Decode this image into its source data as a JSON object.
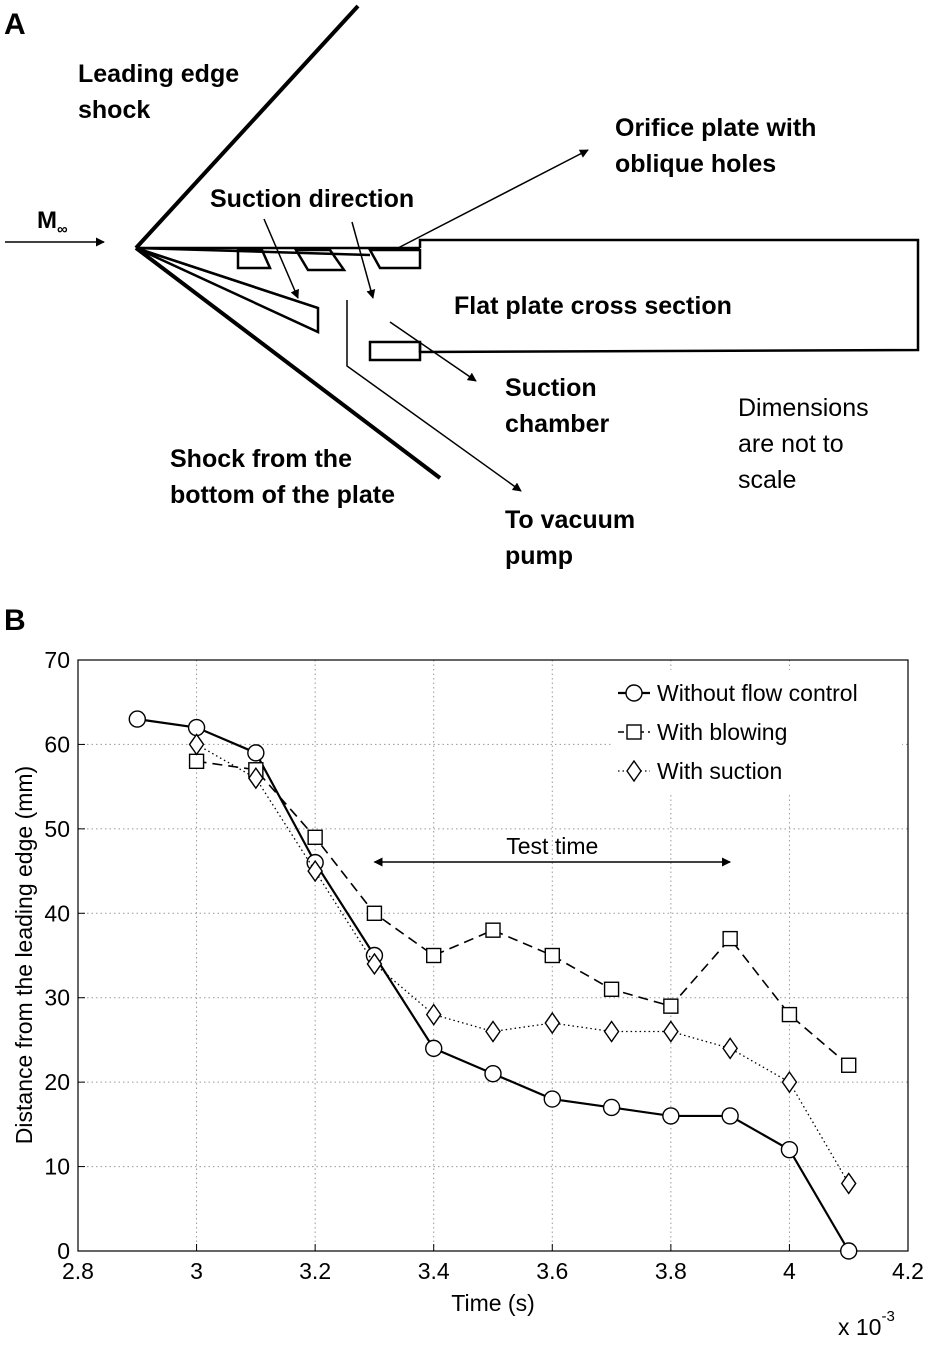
{
  "panel_a": {
    "panel_label": "A",
    "freestream": {
      "main": "M",
      "sub": "∞"
    },
    "labels": {
      "leading_edge_shock": [
        "Leading edge",
        "shock"
      ],
      "orifice_plate": [
        "Orifice plate with",
        "oblique holes"
      ],
      "suction_direction": "Suction direction",
      "flat_plate": "Flat plate cross section",
      "suction_chamber": [
        "Suction",
        "chamber"
      ],
      "dimensions_note": [
        "Dimensions",
        "are not to",
        "scale"
      ],
      "bottom_shock": [
        "Shock from the",
        "bottom of the plate"
      ],
      "vacuum_pump": [
        "To vacuum",
        "pump"
      ]
    }
  },
  "panel_b": {
    "panel_label": "B",
    "annotation": "Test time",
    "exponent_label": {
      "base": "x 10",
      "power": "-3"
    }
  },
  "chart_data": {
    "type": "line",
    "xlabel": "Time (s)",
    "ylabel": "Distance from the leading edge (mm)",
    "xlim": [
      2.8,
      4.2
    ],
    "ylim": [
      0,
      70
    ],
    "xticks": [
      "2.8",
      "3",
      "3.2",
      "3.4",
      "3.6",
      "3.8",
      "4",
      "4.2"
    ],
    "yticks": [
      "0",
      "10",
      "20",
      "30",
      "40",
      "50",
      "60",
      "70"
    ],
    "grid": true,
    "legend_position": "top-right",
    "series": [
      {
        "name": "Without flow control",
        "marker": "circle",
        "line_style": "solid",
        "x": [
          2.9,
          3.0,
          3.1,
          3.2,
          3.3,
          3.4,
          3.5,
          3.6,
          3.7,
          3.8,
          3.9,
          4.0,
          4.1
        ],
        "y": [
          63,
          62,
          59,
          46,
          35,
          24,
          21,
          18,
          17,
          16,
          16,
          12,
          0
        ]
      },
      {
        "name": "With blowing",
        "marker": "square",
        "line_style": "dashed",
        "x": [
          3.0,
          3.1,
          3.2,
          3.3,
          3.4,
          3.5,
          3.6,
          3.7,
          3.8,
          3.9,
          4.0,
          4.1
        ],
        "y": [
          58,
          57,
          49,
          40,
          35,
          38,
          35,
          31,
          29,
          37,
          28,
          22
        ]
      },
      {
        "name": "With suction",
        "marker": "diamond",
        "line_style": "dotted",
        "x": [
          3.0,
          3.1,
          3.2,
          3.3,
          3.4,
          3.5,
          3.6,
          3.7,
          3.8,
          3.9,
          4.0,
          4.1
        ],
        "y": [
          60,
          56,
          45,
          34,
          28,
          26,
          27,
          26,
          26,
          24,
          20,
          8
        ]
      }
    ],
    "test_time_range": [
      3.3,
      3.9
    ]
  }
}
